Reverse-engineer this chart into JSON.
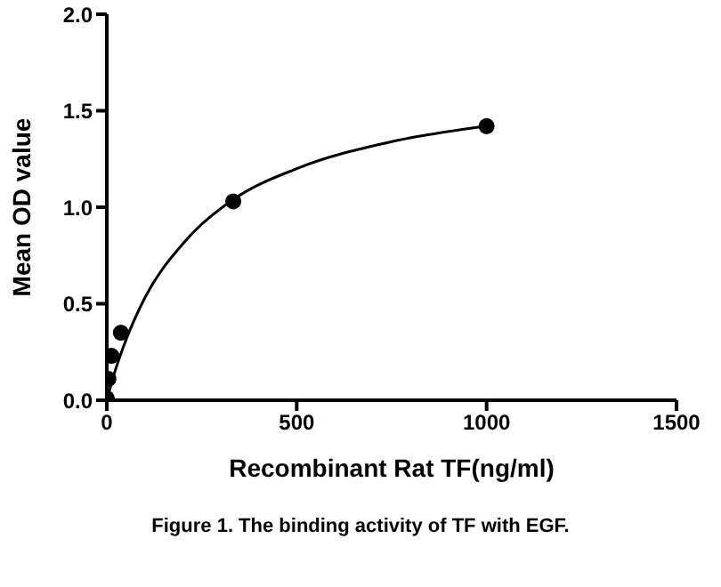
{
  "chart_data": {
    "type": "scatter",
    "xlabel": "Recombinant Rat TF(ng/ml)",
    "ylabel": "Mean OD value",
    "annotations": [
      "Figure 1. The binding activity of TF with EGF."
    ],
    "xlim": [
      0,
      1500
    ],
    "xticks": [
      0,
      500,
      1000,
      1500
    ],
    "ylim": [
      0,
      2
    ],
    "yticks": [
      {
        "value": 0,
        "label": "0.0"
      },
      {
        "value": 0.5,
        "label": "0.5"
      },
      {
        "value": 1,
        "label": "1.0"
      },
      {
        "value": 1.5,
        "label": "1.5"
      },
      {
        "value": 2,
        "label": "2.0"
      }
    ],
    "grid": false,
    "series": [
      {
        "color": "#000000",
        "marker": "circle",
        "x": [
          0,
          4.1,
          12.3,
          37,
          333,
          1000
        ],
        "values": [
          0.01,
          0.11,
          0.23,
          0.35,
          1.03,
          1.42
        ]
      },
      {
        "type": "line",
        "color": "#000000",
        "marker": "none",
        "line_style": "solid",
        "x": [
          0,
          20,
          50,
          100,
          200,
          333,
          500,
          750,
          1000
        ],
        "values": [
          0,
          0.14,
          0.31,
          0.53,
          0.81,
          1.04,
          1.2,
          1.34,
          1.42
        ]
      }
    ]
  }
}
